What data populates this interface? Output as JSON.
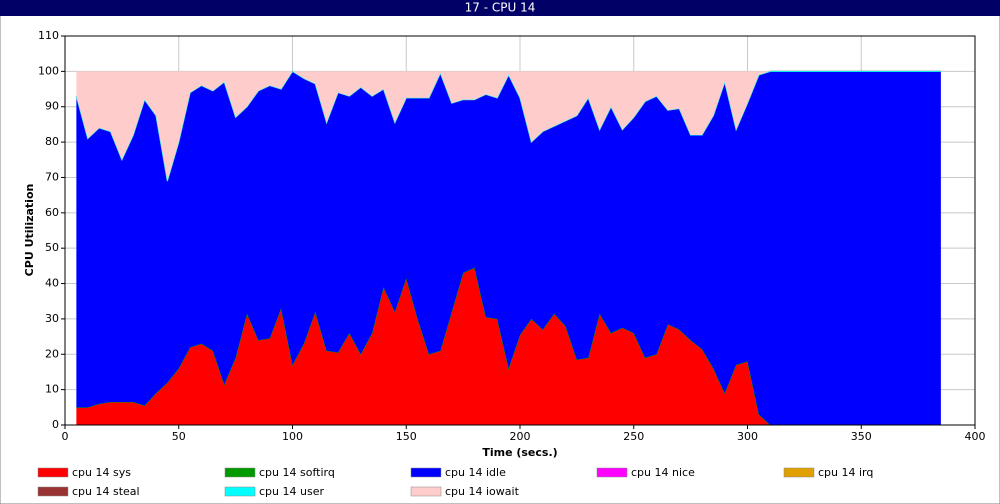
{
  "chart_data": {
    "type": "stacked_area",
    "title": "17 - CPU 14",
    "x_label": "Time (secs.)",
    "y_label": "CPU Utilization",
    "x": [
      5,
      10,
      15,
      20,
      25,
      30,
      35,
      40,
      45,
      50,
      55,
      60,
      65,
      70,
      75,
      80,
      85,
      90,
      95,
      100,
      105,
      110,
      115,
      120,
      125,
      130,
      135,
      140,
      145,
      150,
      155,
      160,
      165,
      170,
      175,
      180,
      185,
      190,
      195,
      200,
      205,
      210,
      215,
      220,
      225,
      230,
      235,
      240,
      245,
      250,
      255,
      260,
      265,
      270,
      275,
      280,
      285,
      290,
      295,
      300,
      305,
      310,
      385
    ],
    "xlim": [
      0,
      400
    ],
    "xticks": [
      0,
      50,
      100,
      150,
      200,
      250,
      300,
      350,
      400
    ],
    "ylim": [
      0,
      110
    ],
    "yticks": [
      0,
      10,
      20,
      30,
      40,
      50,
      60,
      70,
      80,
      90,
      100,
      110
    ],
    "grid": true,
    "series": [
      {
        "name": "cpu 14 sys",
        "color": "#ff0000",
        "values": [
          5,
          5,
          6,
          6.5,
          6.5,
          6.5,
          5.5,
          9,
          12,
          16,
          22,
          23,
          21,
          11.5,
          19,
          31.5,
          24,
          24.5,
          33,
          17,
          23,
          32,
          21,
          20.5,
          26,
          20,
          26,
          39,
          32,
          41.5,
          30,
          20,
          21,
          32,
          43,
          44.5,
          30.5,
          30,
          16,
          25.5,
          30,
          27,
          31.5,
          28,
          18.5,
          19,
          31.5,
          26,
          27.5,
          26,
          19,
          20,
          28.5,
          27,
          24,
          21.5,
          16,
          9,
          17,
          18,
          3,
          0,
          0
        ]
      },
      {
        "name": "cpu 14 softirq",
        "color": "#009900",
        "values": [
          0,
          0,
          0,
          0,
          0,
          0,
          0,
          0,
          0,
          0,
          0,
          0,
          0,
          0,
          0,
          0,
          0,
          0,
          0,
          0,
          0,
          0,
          0,
          0,
          0,
          0,
          0,
          0,
          0,
          0,
          0,
          0,
          0,
          0,
          0,
          0,
          0,
          0,
          0,
          0,
          0,
          0,
          0,
          0,
          0,
          0,
          0,
          0,
          0,
          0,
          0,
          0,
          0,
          0,
          0,
          0,
          0,
          0,
          0,
          0,
          0,
          0,
          0
        ]
      },
      {
        "name": "cpu 14 idle",
        "color": "#0000ff",
        "values": [
          88,
          76,
          78,
          76.5,
          68.5,
          75.5,
          86.5,
          78.5,
          57,
          64,
          72,
          73,
          73.5,
          85.5,
          68,
          58.5,
          70.5,
          71.5,
          62,
          83,
          75,
          64.5,
          64.5,
          73.5,
          67,
          75.5,
          67,
          56,
          53.5,
          51,
          62.5,
          72.5,
          78.5,
          59,
          49,
          47.5,
          63,
          62.5,
          83,
          67,
          50,
          56,
          53,
          58,
          69,
          73.5,
          52,
          64,
          56,
          61,
          72.5,
          73,
          60.5,
          62.5,
          58,
          60.5,
          71.5,
          88,
          66.5,
          73,
          96,
          100,
          100
        ]
      },
      {
        "name": "cpu 14 nice",
        "color": "#ff00ff",
        "values": [
          0,
          0,
          0,
          0,
          0,
          0,
          0,
          0,
          0,
          0,
          0,
          0,
          0,
          0,
          0,
          0,
          0,
          0,
          0,
          0,
          0,
          0,
          0,
          0,
          0,
          0,
          0,
          0,
          0,
          0,
          0,
          0,
          0,
          0,
          0,
          0,
          0,
          0,
          0,
          0,
          0,
          0,
          0,
          0,
          0,
          0,
          0,
          0,
          0,
          0,
          0,
          0,
          0,
          0,
          0,
          0,
          0,
          0,
          0,
          0,
          0,
          0,
          0
        ]
      },
      {
        "name": "cpu 14 irq",
        "color": "#e0a000",
        "values": [
          0,
          0,
          0,
          0,
          0,
          0,
          0,
          0,
          0,
          0,
          0,
          0,
          0,
          0,
          0,
          0,
          0,
          0,
          0,
          0,
          0,
          0,
          0,
          0,
          0,
          0,
          0,
          0,
          0,
          0,
          0,
          0,
          0,
          0,
          0,
          0,
          0,
          0,
          0,
          0,
          0,
          0,
          0,
          0,
          0,
          0,
          0,
          0,
          0,
          0,
          0,
          0,
          0,
          0,
          0,
          0,
          0,
          0,
          0,
          0,
          0,
          0,
          0
        ]
      },
      {
        "name": "cpu 14 steal",
        "color": "#993333",
        "values": [
          0,
          0,
          0,
          0,
          0,
          0,
          0,
          0,
          0,
          0,
          0,
          0,
          0,
          0,
          0,
          0,
          0,
          0,
          0,
          0,
          0,
          0,
          0,
          0,
          0,
          0,
          0,
          0,
          0,
          0,
          0,
          0,
          0,
          0,
          0,
          0,
          0,
          0,
          0,
          0,
          0,
          0,
          0,
          0,
          0,
          0,
          0,
          0,
          0,
          0,
          0,
          0,
          0,
          0,
          0,
          0,
          0,
          0,
          0,
          0,
          0,
          0,
          0
        ]
      },
      {
        "name": "cpu 14 user",
        "color": "#00ffff",
        "values": [
          0,
          0,
          0,
          0,
          0,
          0,
          0,
          0,
          0,
          0,
          0,
          0,
          0,
          0,
          0,
          0,
          0,
          0,
          0,
          0,
          0,
          0,
          0,
          0,
          0,
          0,
          0,
          0,
          0,
          0,
          0,
          0,
          0,
          0,
          0,
          0,
          0,
          0,
          0,
          0,
          0,
          0,
          0,
          0,
          0,
          0,
          0,
          0,
          0,
          0,
          0,
          0,
          0,
          0,
          0,
          0,
          0,
          0,
          0,
          0,
          0,
          0,
          0
        ]
      },
      {
        "name": "cpu 14 iowait",
        "color": "#ffcccc",
        "values": [
          7,
          19,
          16,
          17,
          25,
          18,
          8,
          12.5,
          31,
          20,
          6,
          4,
          5.5,
          3,
          13,
          10,
          5.5,
          4,
          5,
          0,
          2,
          3.5,
          14.5,
          6,
          7,
          4.5,
          7,
          5,
          14.5,
          7.5,
          7.5,
          7.5,
          0.5,
          9,
          8,
          8,
          6.5,
          7.5,
          1,
          7.5,
          20,
          17,
          15.5,
          14,
          12.5,
          7.5,
          16.5,
          10,
          16.5,
          13,
          8.5,
          7,
          11,
          10.5,
          18,
          18,
          12.5,
          3,
          16.5,
          9,
          1,
          0,
          0
        ]
      }
    ]
  }
}
